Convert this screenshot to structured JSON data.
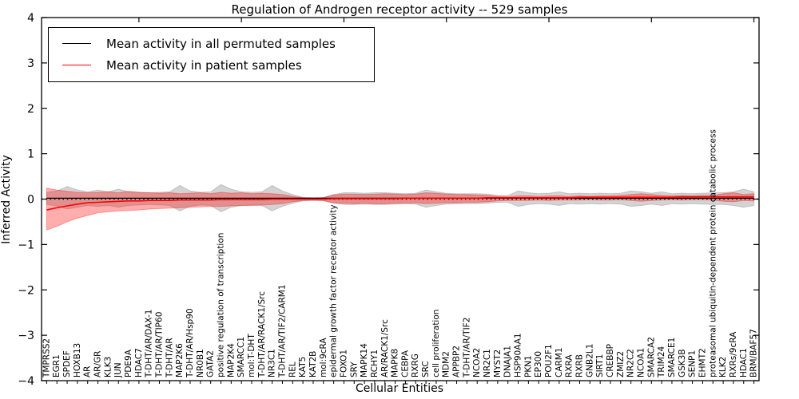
{
  "figure": {
    "title": "Regulation of Androgen receptor activity -- 529 samples",
    "samples_count": "529"
  },
  "legend": {
    "items": [
      {
        "label": "Mean activity in all permuted samples",
        "color": "#000000"
      },
      {
        "label": "Mean activity in patient samples",
        "color": "#ff0000"
      }
    ]
  },
  "chart_data": {
    "type": "line",
    "title": "Regulation of Androgen receptor activity -- 529 samples",
    "xlabel": "Cellular Entities",
    "ylabel": "Inferred Activity",
    "ylim": [
      -4,
      4
    ],
    "yticks": [
      -4,
      -3,
      -2,
      -1,
      0,
      1,
      2,
      3,
      4
    ],
    "grid": false,
    "legend_position": "upper left",
    "zero_line": {
      "value": 0,
      "style": "dotted",
      "color": "#000000"
    },
    "categories": [
      "TMPRSS2",
      "EGR1",
      "SPDEF",
      "HOXB13",
      "AR",
      "AR/GR",
      "KLK3",
      "JUN",
      "PDE9A",
      "HDAC7",
      "T-DHT/AR/DAX-1",
      "T-DHT/AR/TIP60",
      "T-DHT/AR",
      "MAP2K6",
      "T-DHT/AR/Hsp90",
      "NR0B1",
      "GATA2",
      "positive regulation of transcription",
      "MAP2K4",
      "SMARCC1",
      "mol:T-DHT",
      "T-DHT/AR/RACK1/Src",
      "NR3C1",
      "T-DHT/AR/TIF2/CARM1",
      "REL",
      "KAT5",
      "KAT2B",
      "mol:9cRA",
      "epidermal growth factor receptor activity",
      "FOXO1",
      "SRY",
      "MAPK14",
      "RCHY1",
      "AR/RACK1/Src",
      "MAPK8",
      "CEBPA",
      "RXRG",
      "SRC",
      "cell proliferation",
      "MDM2",
      "APPBP2",
      "T-DHT/AR/TIF2",
      "NCOA2",
      "NR2C1",
      "MYST2",
      "DNAJA1",
      "HSP90AA1",
      "PKN1",
      "EP300",
      "POU2F1",
      "CARM1",
      "RXRA",
      "RXRB",
      "GNB2L1",
      "SIRT1",
      "CREBBP",
      "ZMIZ2",
      "NR2C2",
      "NCOA1",
      "SMARCA2",
      "TRIM24",
      "SMARCE1",
      "GSK3B",
      "SENP1",
      "EHMT2",
      "proteasomal ubiquitin-dependent protein catabolic process",
      "KLK2",
      "RXRs/9cRA",
      "HDAC1",
      "BRM/BAF57"
    ],
    "series": [
      {
        "name": "Mean activity in all permuted samples",
        "color": "#000000",
        "line_width": 1.3,
        "band_color": "rgba(130,130,130,0.35)",
        "values": [
          0.02,
          0.02,
          0.02,
          0.02,
          0.02,
          0.02,
          0.02,
          0.02,
          0.02,
          0.02,
          0.02,
          0.02,
          0.02,
          0.02,
          0.02,
          0.02,
          0.02,
          0.02,
          0.02,
          0.02,
          0.02,
          0.02,
          0.02,
          0.02,
          0.02,
          0.02,
          0.02,
          0.02,
          0.02,
          0.02,
          0.02,
          0.02,
          0.02,
          0.02,
          0.02,
          0.02,
          0.02,
          0.02,
          0.02,
          0.02,
          0.02,
          0.02,
          0.02,
          0.02,
          0.02,
          0.02,
          0.02,
          0.02,
          0.02,
          0.02,
          0.02,
          0.02,
          0.02,
          0.02,
          0.02,
          0.02,
          0.02,
          0.02,
          0.02,
          0.02,
          0.02,
          0.02,
          0.02,
          0.02,
          0.02,
          0.02,
          0.02,
          0.02,
          0.02,
          0.02
        ],
        "band_upper": [
          0.15,
          0.18,
          0.28,
          0.2,
          0.16,
          0.2,
          0.16,
          0.22,
          0.16,
          0.15,
          0.14,
          0.15,
          0.16,
          0.3,
          0.18,
          0.15,
          0.16,
          0.32,
          0.22,
          0.16,
          0.15,
          0.16,
          0.3,
          0.18,
          0.1,
          0.04,
          0.03,
          0.04,
          0.1,
          0.14,
          0.14,
          0.13,
          0.14,
          0.14,
          0.13,
          0.12,
          0.13,
          0.2,
          0.16,
          0.13,
          0.12,
          0.12,
          0.12,
          0.11,
          0.08,
          0.08,
          0.18,
          0.14,
          0.12,
          0.13,
          0.16,
          0.12,
          0.13,
          0.12,
          0.13,
          0.12,
          0.13,
          0.18,
          0.16,
          0.13,
          0.16,
          0.12,
          0.13,
          0.12,
          0.13,
          0.14,
          0.14,
          0.16,
          0.22,
          0.16
        ],
        "band_lower": [
          -0.12,
          -0.15,
          -0.22,
          -0.18,
          -0.14,
          -0.16,
          -0.14,
          -0.18,
          -0.14,
          -0.13,
          -0.12,
          -0.13,
          -0.14,
          -0.26,
          -0.16,
          -0.13,
          -0.14,
          -0.28,
          -0.18,
          -0.14,
          -0.13,
          -0.14,
          -0.26,
          -0.16,
          -0.09,
          -0.04,
          -0.03,
          -0.04,
          -0.09,
          -0.12,
          -0.12,
          -0.11,
          -0.12,
          -0.12,
          -0.11,
          -0.1,
          -0.11,
          -0.18,
          -0.14,
          -0.11,
          -0.1,
          -0.1,
          -0.1,
          -0.09,
          -0.07,
          -0.07,
          -0.16,
          -0.12,
          -0.1,
          -0.11,
          -0.14,
          -0.1,
          -0.11,
          -0.1,
          -0.11,
          -0.1,
          -0.11,
          -0.16,
          -0.14,
          -0.11,
          -0.14,
          -0.1,
          -0.11,
          -0.1,
          -0.11,
          -0.12,
          -0.12,
          -0.14,
          -0.18,
          -0.14
        ]
      },
      {
        "name": "Mean activity in patient samples",
        "color": "#ff0000",
        "line_width": 1.6,
        "band_color": "rgba(255,0,0,0.32)",
        "values": [
          -0.24,
          -0.19,
          -0.15,
          -0.11,
          -0.08,
          -0.07,
          -0.06,
          -0.05,
          -0.04,
          -0.04,
          -0.03,
          -0.03,
          -0.03,
          -0.02,
          -0.02,
          -0.02,
          -0.02,
          -0.01,
          -0.01,
          -0.01,
          -0.01,
          -0.01,
          0.0,
          0.0,
          0.0,
          0.0,
          0.0,
          0.0,
          0.01,
          0.01,
          0.01,
          0.01,
          0.01,
          0.01,
          0.01,
          0.02,
          0.02,
          0.02,
          0.02,
          0.02,
          0.02,
          0.02,
          0.02,
          0.03,
          0.03,
          0.03,
          0.03,
          0.03,
          0.03,
          0.03,
          0.03,
          0.03,
          0.04,
          0.04,
          0.04,
          0.04,
          0.04,
          0.04,
          0.04,
          0.04,
          0.04,
          0.04,
          0.05,
          0.05,
          0.05,
          0.05,
          0.05,
          0.05,
          0.05,
          0.05
        ],
        "band_upper": [
          0.24,
          0.2,
          0.17,
          0.15,
          0.14,
          0.15,
          0.16,
          0.14,
          0.17,
          0.15,
          0.14,
          0.13,
          0.14,
          0.12,
          0.13,
          0.14,
          0.12,
          0.15,
          0.13,
          0.14,
          0.12,
          0.13,
          0.12,
          0.1,
          0.06,
          0.03,
          0.02,
          0.03,
          0.09,
          0.11,
          0.11,
          0.1,
          0.11,
          0.12,
          0.11,
          0.1,
          0.11,
          0.14,
          0.13,
          0.11,
          0.1,
          0.1,
          0.09,
          0.08,
          0.06,
          0.05,
          0.07,
          0.07,
          0.06,
          0.07,
          0.07,
          0.06,
          0.07,
          0.06,
          0.07,
          0.07,
          0.08,
          0.1,
          0.12,
          0.1,
          0.08,
          0.07,
          0.08,
          0.07,
          0.08,
          0.08,
          0.12,
          0.14,
          0.1,
          0.12
        ],
        "band_lower": [
          -0.68,
          -0.6,
          -0.5,
          -0.42,
          -0.36,
          -0.3,
          -0.28,
          -0.26,
          -0.25,
          -0.24,
          -0.22,
          -0.21,
          -0.2,
          -0.19,
          -0.18,
          -0.17,
          -0.16,
          -0.16,
          -0.15,
          -0.14,
          -0.14,
          -0.13,
          -0.12,
          -0.1,
          -0.06,
          -0.03,
          -0.02,
          -0.03,
          -0.08,
          -0.09,
          -0.1,
          -0.09,
          -0.1,
          -0.1,
          -0.09,
          -0.09,
          -0.08,
          -0.1,
          -0.09,
          -0.08,
          -0.08,
          -0.07,
          -0.07,
          -0.06,
          -0.04,
          -0.03,
          -0.03,
          -0.03,
          -0.02,
          -0.03,
          -0.02,
          -0.02,
          -0.02,
          -0.01,
          -0.02,
          -0.02,
          -0.01,
          -0.03,
          -0.05,
          -0.03,
          -0.02,
          -0.01,
          -0.02,
          -0.01,
          -0.01,
          -0.02,
          -0.05,
          -0.06,
          -0.03,
          -0.04
        ]
      }
    ]
  }
}
